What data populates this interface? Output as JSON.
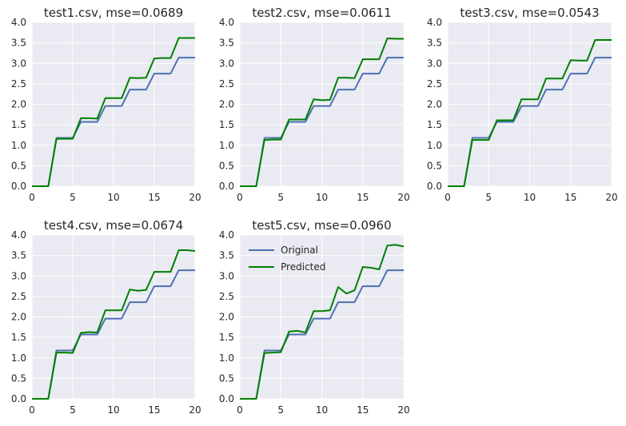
{
  "palette": {
    "panel_bg": "#EAEAF2",
    "grid": "#FFFFFF",
    "original": "#4C72B0",
    "predicted": "#008000"
  },
  "chart_data": [
    {
      "type": "line",
      "title": "test1.csv, mse=0.0689",
      "xlim": [
        0,
        20
      ],
      "ylim": [
        0,
        4
      ],
      "xticks": [
        "0",
        "5",
        "10",
        "15",
        "20"
      ],
      "yticks": [
        "0.0",
        "0.5",
        "1.0",
        "1.5",
        "2.0",
        "2.5",
        "3.0",
        "3.5",
        "4.0"
      ],
      "grid": true,
      "x": [
        0,
        1,
        2,
        3,
        4,
        5,
        6,
        7,
        8,
        9,
        10,
        11,
        12,
        13,
        14,
        15,
        16,
        17,
        18,
        19,
        20
      ],
      "series": [
        {
          "values": [
            0,
            0,
            0,
            1.18,
            1.18,
            1.18,
            1.57,
            1.57,
            1.57,
            1.96,
            1.96,
            1.96,
            2.36,
            2.36,
            2.36,
            2.75,
            2.75,
            2.75,
            3.14,
            3.14,
            3.14
          ]
        },
        {
          "values": [
            0,
            0,
            0,
            1.16,
            1.16,
            1.16,
            1.66,
            1.66,
            1.65,
            2.15,
            2.15,
            2.15,
            2.65,
            2.64,
            2.65,
            3.12,
            3.13,
            3.13,
            3.62,
            3.62,
            3.62
          ]
        }
      ]
    },
    {
      "type": "line",
      "title": "test2.csv, mse=0.0611",
      "xlim": [
        0,
        20
      ],
      "ylim": [
        0,
        4
      ],
      "xticks": [
        "0",
        "5",
        "10",
        "15",
        "20"
      ],
      "yticks": [
        "0.0",
        "0.5",
        "1.0",
        "1.5",
        "2.0",
        "2.5",
        "3.0",
        "3.5",
        "4.0"
      ],
      "grid": true,
      "x": [
        0,
        1,
        2,
        3,
        4,
        5,
        6,
        7,
        8,
        9,
        10,
        11,
        12,
        13,
        14,
        15,
        16,
        17,
        18,
        19,
        20
      ],
      "series": [
        {
          "values": [
            0,
            0,
            0,
            1.18,
            1.18,
            1.18,
            1.57,
            1.57,
            1.57,
            1.96,
            1.96,
            1.96,
            2.36,
            2.36,
            2.36,
            2.75,
            2.75,
            2.75,
            3.14,
            3.14,
            3.14
          ]
        },
        {
          "values": [
            0,
            0,
            0,
            1.13,
            1.14,
            1.14,
            1.63,
            1.63,
            1.63,
            2.12,
            2.1,
            2.11,
            2.65,
            2.65,
            2.64,
            3.1,
            3.1,
            3.1,
            3.61,
            3.6,
            3.6
          ]
        }
      ]
    },
    {
      "type": "line",
      "title": "test3.csv, mse=0.0543",
      "xlim": [
        0,
        20
      ],
      "ylim": [
        0,
        4
      ],
      "xticks": [
        "0",
        "5",
        "10",
        "15",
        "20"
      ],
      "yticks": [
        "0.0",
        "0.5",
        "1.0",
        "1.5",
        "2.0",
        "2.5",
        "3.0",
        "3.5",
        "4.0"
      ],
      "grid": true,
      "x": [
        0,
        1,
        2,
        3,
        4,
        5,
        6,
        7,
        8,
        9,
        10,
        11,
        12,
        13,
        14,
        15,
        16,
        17,
        18,
        19,
        20
      ],
      "series": [
        {
          "values": [
            0,
            0,
            0,
            1.18,
            1.18,
            1.18,
            1.57,
            1.57,
            1.57,
            1.96,
            1.96,
            1.96,
            2.36,
            2.36,
            2.36,
            2.75,
            2.75,
            2.75,
            3.14,
            3.14,
            3.14
          ]
        },
        {
          "values": [
            0,
            0,
            0,
            1.13,
            1.13,
            1.13,
            1.61,
            1.61,
            1.61,
            2.12,
            2.12,
            2.12,
            2.63,
            2.63,
            2.63,
            3.08,
            3.07,
            3.07,
            3.57,
            3.57,
            3.57
          ]
        }
      ]
    },
    {
      "type": "line",
      "title": "test4.csv, mse=0.0674",
      "xlim": [
        0,
        20
      ],
      "ylim": [
        0,
        4
      ],
      "xticks": [
        "0",
        "5",
        "10",
        "15",
        "20"
      ],
      "yticks": [
        "0.0",
        "0.5",
        "1.0",
        "1.5",
        "2.0",
        "2.5",
        "3.0",
        "3.5",
        "4.0"
      ],
      "grid": true,
      "x": [
        0,
        1,
        2,
        3,
        4,
        5,
        6,
        7,
        8,
        9,
        10,
        11,
        12,
        13,
        14,
        15,
        16,
        17,
        18,
        19,
        20
      ],
      "series": [
        {
          "values": [
            0,
            0,
            0,
            1.18,
            1.18,
            1.18,
            1.57,
            1.57,
            1.57,
            1.96,
            1.96,
            1.96,
            2.36,
            2.36,
            2.36,
            2.75,
            2.75,
            2.75,
            3.14,
            3.14,
            3.14
          ]
        },
        {
          "values": [
            0,
            0,
            0,
            1.13,
            1.13,
            1.12,
            1.61,
            1.63,
            1.62,
            2.16,
            2.16,
            2.16,
            2.67,
            2.64,
            2.66,
            3.1,
            3.1,
            3.1,
            3.63,
            3.63,
            3.61
          ]
        }
      ]
    },
    {
      "type": "line",
      "title": "test5.csv, mse=0.0960",
      "xlim": [
        0,
        20
      ],
      "ylim": [
        0,
        4
      ],
      "xticks": [
        "0",
        "5",
        "10",
        "15",
        "20"
      ],
      "yticks": [
        "0.0",
        "0.5",
        "1.0",
        "1.5",
        "2.0",
        "2.5",
        "3.0",
        "3.5",
        "4.0"
      ],
      "grid": true,
      "legend": {
        "position": "top-left",
        "entries": [
          "Original",
          "Predicted"
        ]
      },
      "x": [
        0,
        1,
        2,
        3,
        4,
        5,
        6,
        7,
        8,
        9,
        10,
        11,
        12,
        13,
        14,
        15,
        16,
        17,
        18,
        19,
        20
      ],
      "series": [
        {
          "name": "Original",
          "values": [
            0,
            0,
            0,
            1.18,
            1.18,
            1.18,
            1.57,
            1.57,
            1.57,
            1.96,
            1.96,
            1.96,
            2.36,
            2.36,
            2.36,
            2.75,
            2.75,
            2.75,
            3.14,
            3.14,
            3.14
          ]
        },
        {
          "name": "Predicted",
          "values": [
            0,
            0,
            0,
            1.12,
            1.13,
            1.14,
            1.64,
            1.66,
            1.62,
            2.14,
            2.14,
            2.16,
            2.73,
            2.57,
            2.65,
            3.22,
            3.2,
            3.16,
            3.74,
            3.76,
            3.72
          ]
        }
      ]
    }
  ]
}
